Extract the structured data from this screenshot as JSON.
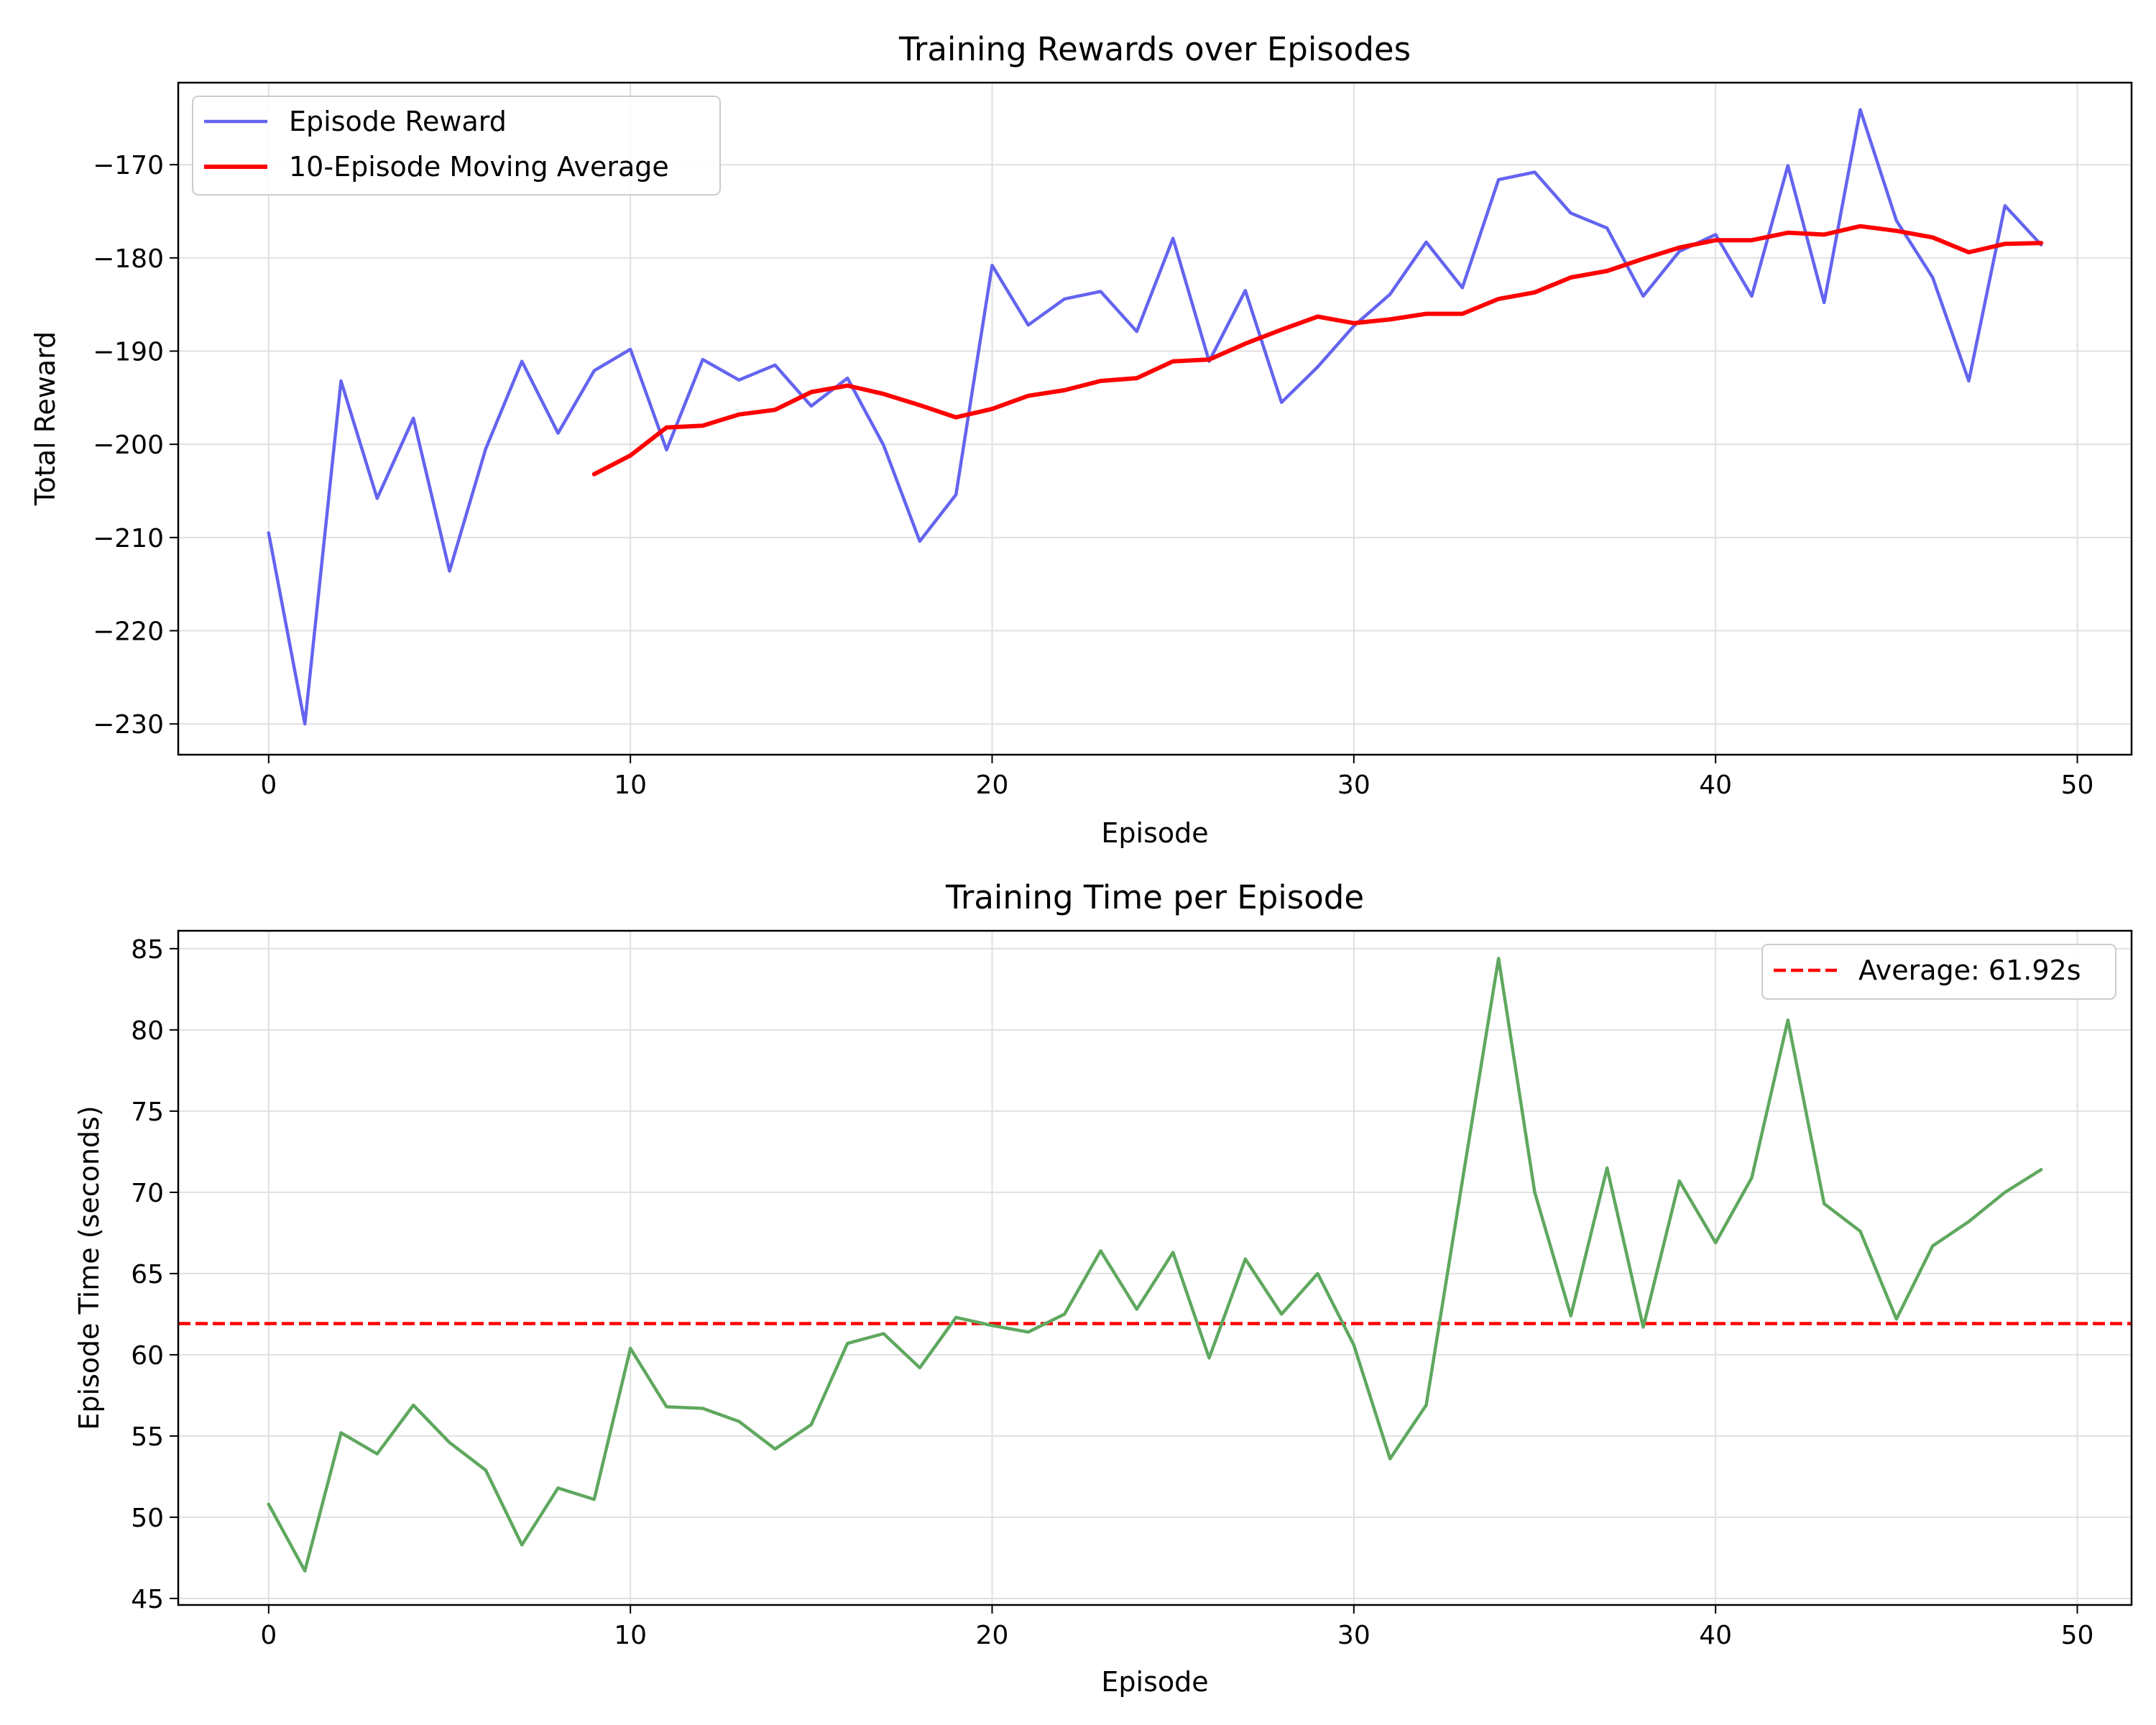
{
  "chart_data": [
    {
      "type": "line",
      "title": "Training Rewards over Episodes",
      "xlabel": "Episode",
      "ylabel": "Total Reward",
      "xlim": [
        -2.5,
        51.5
      ],
      "ylim": [
        -233.3,
        -161.2
      ],
      "xticks": [
        0,
        10,
        20,
        30,
        40,
        50
      ],
      "yticks": [
        -230,
        -220,
        -210,
        -200,
        -190,
        -180,
        -170
      ],
      "ytick_labels": [
        "−230",
        "−220",
        "−210",
        "−200",
        "−190",
        "−180",
        "−170"
      ],
      "grid": true,
      "legend_position": "upper-left",
      "series": [
        {
          "name": "Episode Reward",
          "color": "#6464f0",
          "x": [
            0,
            1,
            2,
            3,
            4,
            5,
            6,
            7,
            8,
            9,
            10,
            11,
            12,
            13,
            14,
            15,
            16,
            17,
            18,
            19,
            20,
            21,
            22,
            23,
            24,
            25,
            26,
            27,
            28,
            29,
            30,
            31,
            32,
            33,
            34,
            35,
            36,
            37,
            38,
            39,
            40,
            41,
            42,
            43,
            44,
            45,
            46,
            47,
            48,
            49
          ],
          "y": [
            -209.5,
            -230,
            -193.2,
            -205.8,
            -197.2,
            -213.6,
            -200.5,
            -191.1,
            -198.8,
            -192.1,
            -189.8,
            -200.6,
            -190.9,
            -193.1,
            -191.5,
            -195.9,
            -192.9,
            -200.1,
            -210.4,
            -205.4,
            -180.8,
            -187.2,
            -184.4,
            -183.6,
            -187.9,
            -177.9,
            -191.1,
            -183.5,
            -195.5,
            -191.7,
            -187.3,
            -183.9,
            -178.3,
            -183.2,
            -171.6,
            -170.8,
            -175.2,
            -176.8,
            -184.1,
            -179.3,
            -177.5,
            -184.1,
            -170.1,
            -184.8,
            -164.1,
            -176,
            -182.1,
            -193.2,
            -174.4,
            -178.6
          ]
        },
        {
          "name": "10-Episode Moving Average",
          "color": "#ff0000",
          "x": [
            9,
            10,
            11,
            12,
            13,
            14,
            15,
            16,
            17,
            18,
            19,
            20,
            21,
            22,
            23,
            24,
            25,
            26,
            27,
            28,
            29,
            30,
            31,
            32,
            33,
            34,
            35,
            36,
            37,
            38,
            39,
            40,
            41,
            42,
            43,
            44,
            45,
            46,
            47,
            48,
            49
          ],
          "y": [
            -203.2,
            -201.2,
            -198.2,
            -198,
            -196.8,
            -196.3,
            -194.4,
            -193.7,
            -194.6,
            -195.8,
            -197.1,
            -196.2,
            -194.8,
            -194.2,
            -193.2,
            -192.9,
            -191.1,
            -190.9,
            -189.2,
            -187.7,
            -186.3,
            -187,
            -186.6,
            -186,
            -186,
            -184.4,
            -183.7,
            -182.1,
            -181.4,
            -180.1,
            -178.9,
            -178.1,
            -178.1,
            -177.3,
            -177.5,
            -176.6,
            -177.1,
            -177.8,
            -179.4,
            -178.5,
            -178.4
          ]
        }
      ]
    },
    {
      "type": "line",
      "title": "Training Time per Episode",
      "xlabel": "Episode",
      "ylabel": "Episode Time (seconds)",
      "xlim": [
        -2.5,
        51.5
      ],
      "ylim": [
        44.6,
        86.1
      ],
      "xticks": [
        0,
        10,
        20,
        30,
        40,
        50
      ],
      "yticks": [
        45,
        50,
        55,
        60,
        65,
        70,
        75,
        80,
        85
      ],
      "grid": true,
      "legend_position": "upper-right",
      "reference_line": {
        "label": "Average: 61.92s",
        "y": 61.92,
        "color": "#ff0000",
        "style": "dashed"
      },
      "series": [
        {
          "name": "",
          "color": "#5fa85f",
          "x": [
            0,
            1,
            2,
            3,
            4,
            5,
            6,
            7,
            8,
            9,
            10,
            11,
            12,
            13,
            14,
            15,
            16,
            17,
            18,
            19,
            20,
            21,
            22,
            23,
            24,
            25,
            26,
            27,
            28,
            29,
            30,
            31,
            32,
            33,
            34,
            35,
            36,
            37,
            38,
            39,
            40,
            41,
            42,
            43,
            44,
            45,
            46,
            47,
            48,
            49
          ],
          "y": [
            50.8,
            46.7,
            55.2,
            53.9,
            56.9,
            54.6,
            52.9,
            48.3,
            51.8,
            51.1,
            60.4,
            56.8,
            56.7,
            55.9,
            54.2,
            55.7,
            60.7,
            61.3,
            59.2,
            62.3,
            61.8,
            61.4,
            62.5,
            66.4,
            62.8,
            66.3,
            59.8,
            65.9,
            62.5,
            65,
            60.6,
            53.6,
            56.9,
            70.7,
            84.4,
            70,
            62.4,
            71.5,
            61.7,
            70.7,
            66.9,
            70.9,
            80.6,
            69.3,
            67.6,
            62.2,
            66.7,
            68.2,
            70,
            71.4
          ]
        }
      ]
    }
  ]
}
